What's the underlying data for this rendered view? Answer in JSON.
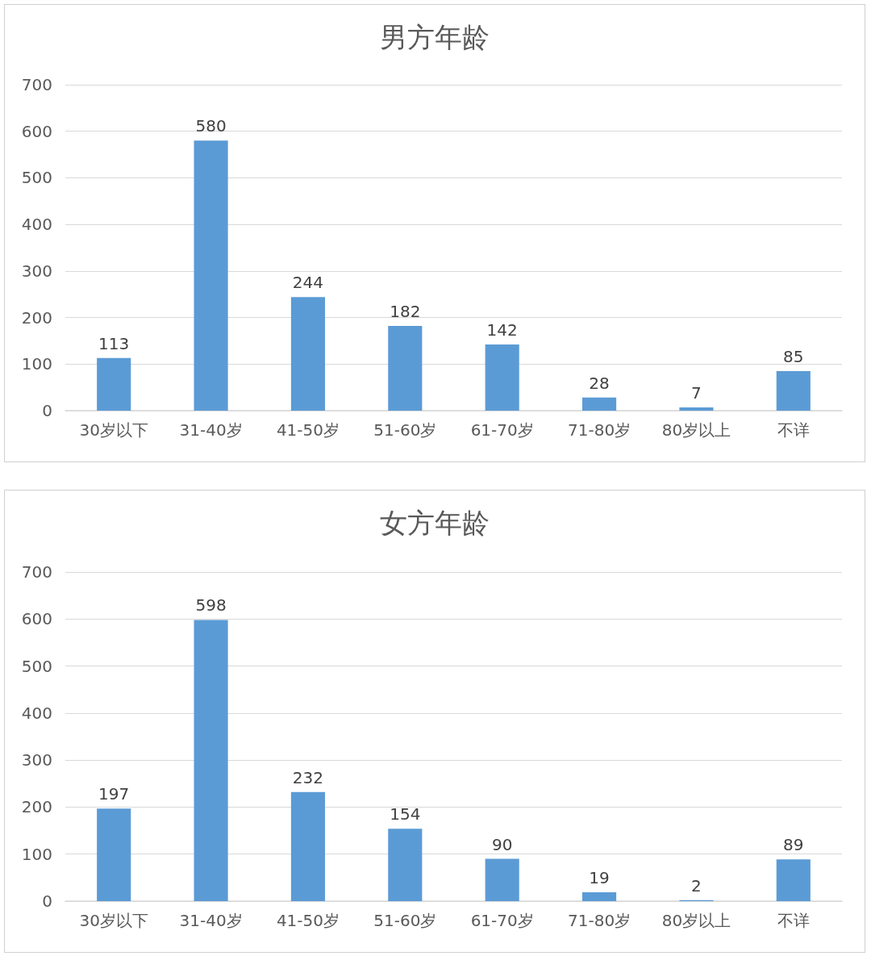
{
  "chart_data": [
    {
      "type": "bar",
      "title": "男方年龄",
      "categories": [
        "30岁以下",
        "31-40岁",
        "41-50岁",
        "51-60岁",
        "61-70岁",
        "71-80岁",
        "80岁以上",
        "不详"
      ],
      "values": [
        113,
        580,
        244,
        182,
        142,
        28,
        7,
        85
      ],
      "color": "#5b9bd5",
      "ylim": [
        0,
        700
      ],
      "yticks": [
        0,
        100,
        200,
        300,
        400,
        500,
        600,
        700
      ],
      "grid": "y",
      "data_labels": true
    },
    {
      "type": "bar",
      "title": "女方年龄",
      "categories": [
        "30岁以下",
        "31-40岁",
        "41-50岁",
        "51-60岁",
        "61-70岁",
        "71-80岁",
        "80岁以上",
        "不详"
      ],
      "values": [
        197,
        598,
        232,
        154,
        90,
        19,
        2,
        89
      ],
      "color": "#5b9bd5",
      "ylim": [
        0,
        700
      ],
      "yticks": [
        0,
        100,
        200,
        300,
        400,
        500,
        600,
        700
      ],
      "grid": "y",
      "data_labels": true
    }
  ]
}
